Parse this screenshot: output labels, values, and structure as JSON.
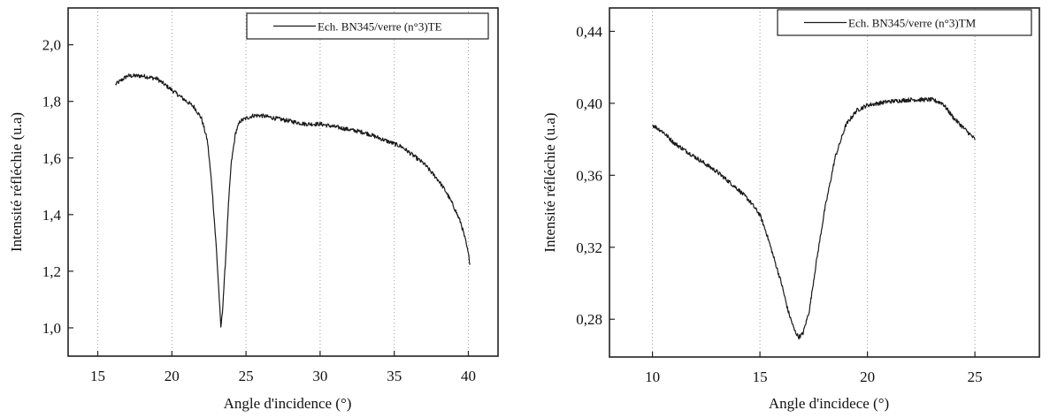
{
  "chart_data": [
    {
      "type": "line",
      "xlabel": "Angle d'incidence (°)",
      "ylabel": "Intensité réfléchie (u.a)",
      "xlim": [
        13,
        42
      ],
      "ylim": [
        0.9,
        2.13
      ],
      "xticks": [
        15,
        20,
        25,
        30,
        35,
        40
      ],
      "xtick_labels": [
        "15",
        "20",
        "25",
        "30",
        "35",
        "40"
      ],
      "yticks": [
        1.0,
        1.2,
        1.4,
        1.6,
        1.8,
        2.0
      ],
      "ytick_labels": [
        "1,0",
        "1,2",
        "1,4",
        "1,6",
        "1,8",
        "2,0"
      ],
      "grid": "vertical-dotted",
      "legend_position": "top-right",
      "series": [
        {
          "name": "Ech. BN345/verre (n°3)TE",
          "color": "#1a1a1a",
          "x": [
            16.2,
            17.0,
            18.0,
            19.0,
            20.0,
            20.5,
            21.0,
            21.5,
            22.0,
            22.4,
            22.7,
            23.0,
            23.2,
            23.3,
            23.4,
            23.6,
            23.8,
            24.0,
            24.3,
            24.6,
            25.0,
            25.5,
            26.0,
            27.0,
            28.0,
            29.0,
            30.0,
            31.0,
            32.0,
            33.0,
            34.0,
            35.0,
            35.5,
            36.0,
            37.0,
            38.0,
            38.5,
            39.0,
            39.5,
            39.8,
            40.0,
            40.1
          ],
          "y": [
            1.86,
            1.89,
            1.89,
            1.88,
            1.84,
            1.82,
            1.8,
            1.78,
            1.74,
            1.66,
            1.5,
            1.28,
            1.1,
            1.0,
            1.05,
            1.22,
            1.42,
            1.58,
            1.69,
            1.73,
            1.74,
            1.75,
            1.75,
            1.74,
            1.73,
            1.72,
            1.72,
            1.71,
            1.7,
            1.69,
            1.67,
            1.65,
            1.64,
            1.62,
            1.58,
            1.52,
            1.48,
            1.43,
            1.37,
            1.31,
            1.26,
            1.23
          ]
        }
      ]
    },
    {
      "type": "line",
      "xlabel": "Angle d'incidece (°)",
      "ylabel": "Intensité réfléchie (u.a)",
      "xlim": [
        8,
        28
      ],
      "ylim": [
        0.259,
        0.453
      ],
      "xticks": [
        10,
        15,
        20,
        25
      ],
      "xtick_labels": [
        "10",
        "15",
        "20",
        "25"
      ],
      "yticks": [
        0.28,
        0.32,
        0.36,
        0.4,
        0.44
      ],
      "ytick_labels": [
        "0,28",
        "0,32",
        "0,36",
        "0,40",
        "0,44"
      ],
      "grid": "vertical-dotted",
      "legend_position": "top-right",
      "series": [
        {
          "name": "Ech. BN345/verre (n°3)TM",
          "color": "#1a1a1a",
          "x": [
            10.0,
            10.5,
            11.0,
            12.0,
            13.0,
            14.0,
            14.5,
            15.0,
            15.3,
            15.6,
            16.0,
            16.3,
            16.6,
            16.8,
            17.0,
            17.3,
            17.6,
            18.0,
            18.5,
            19.0,
            19.5,
            20.0,
            20.5,
            21.0,
            22.0,
            23.0,
            23.5,
            24.0,
            24.5,
            25.0
          ],
          "y": [
            0.388,
            0.384,
            0.378,
            0.37,
            0.362,
            0.352,
            0.346,
            0.338,
            0.328,
            0.316,
            0.3,
            0.285,
            0.274,
            0.27,
            0.272,
            0.285,
            0.31,
            0.34,
            0.37,
            0.388,
            0.396,
            0.399,
            0.4,
            0.401,
            0.402,
            0.402,
            0.4,
            0.392,
            0.386,
            0.38
          ]
        }
      ]
    }
  ]
}
